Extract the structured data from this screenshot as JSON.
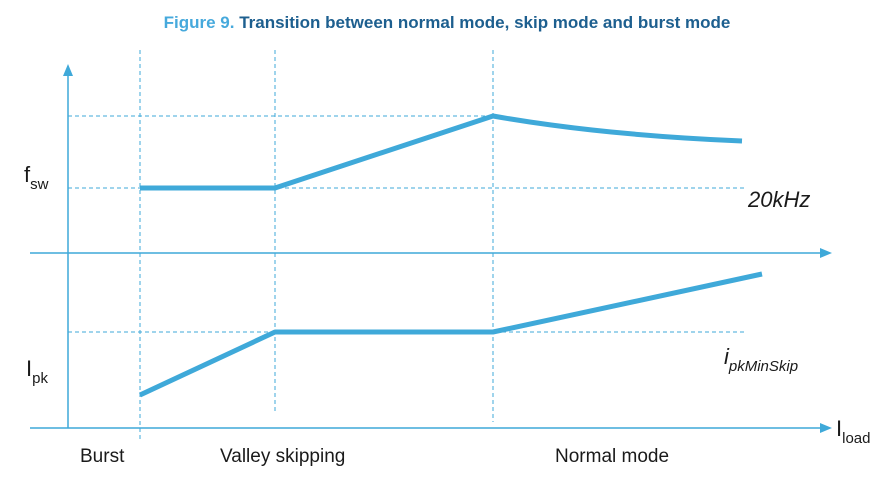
{
  "title": {
    "number": "Figure 9.",
    "text": "Transition between normal mode, skip mode and burst mode"
  },
  "axes": {
    "upper_y": {
      "main": "f",
      "sub": "sw"
    },
    "lower_y": {
      "main": "I",
      "sub": "pk"
    },
    "x": {
      "main": "I",
      "sub": "load"
    }
  },
  "annotations": {
    "freq_min": "20kHz",
    "ipk_min": {
      "main": "i",
      "sub": "pkMinSkip"
    }
  },
  "regions": [
    "Burst",
    "Valley skipping",
    "Normal mode"
  ]
}
